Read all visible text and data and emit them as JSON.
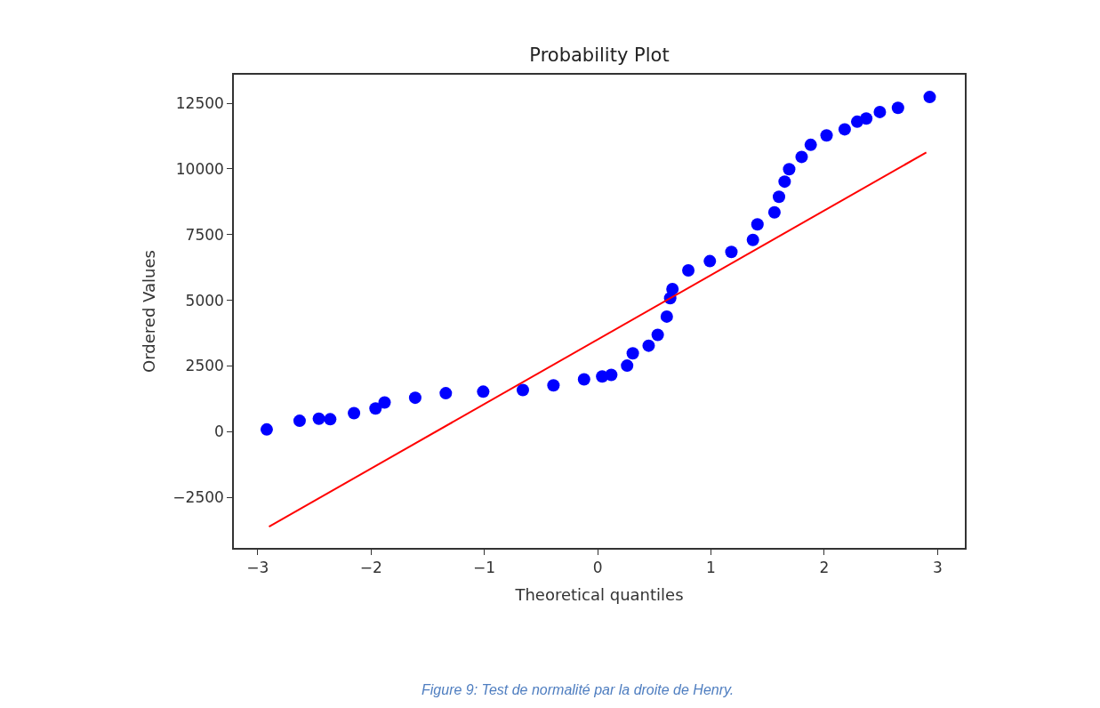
{
  "chart_data": {
    "type": "scatter",
    "title": "Probability Plot",
    "xlabel": "Theoretical quantiles",
    "ylabel": "Ordered Values",
    "annotations": [
      "Figure 9: Test de normalité par la droite de Henry."
    ],
    "xlim": [
      -3.21,
      3.24
    ],
    "xticks": [
      {
        "value": -3,
        "label": "−3"
      },
      {
        "value": -2,
        "label": "−2"
      },
      {
        "value": -1,
        "label": "−1"
      },
      0,
      1,
      2,
      3
    ],
    "ylim": [
      -4430,
      13590
    ],
    "yticks": [
      {
        "value": -2500,
        "label": "−2500"
      },
      0,
      2500,
      5000,
      7500,
      10000,
      12500
    ],
    "series": [
      {
        "marker": "circle",
        "color": "#0000ff",
        "x": [
          -2.92,
          -2.63,
          -2.46,
          -2.36,
          -2.15,
          -1.96,
          -1.88,
          -1.61,
          -1.34,
          -1.01,
          -0.66,
          -0.39,
          -0.12,
          0.04,
          0.12,
          0.26,
          0.31,
          0.45,
          0.53,
          0.61,
          0.64,
          0.66,
          0.8,
          0.99,
          1.18,
          1.37,
          1.41,
          1.56,
          1.6,
          1.65,
          1.69,
          1.8,
          1.88,
          2.02,
          2.18,
          2.29,
          2.37,
          2.49,
          2.65,
          2.93
        ],
        "values": [
          80,
          410,
          490,
          470,
          700,
          880,
          1110,
          1290,
          1460,
          1520,
          1580,
          1760,
          1990,
          2100,
          2160,
          2510,
          2980,
          3270,
          3680,
          4380,
          5080,
          5430,
          6140,
          6490,
          6840,
          7300,
          7890,
          8350,
          8940,
          9520,
          9990,
          10460,
          10920,
          11280,
          11510,
          11800,
          11920,
          12170,
          12330,
          12740
        ]
      },
      {
        "type": "line",
        "marker": "none",
        "color": "#ff0000",
        "x": [
          -2.9,
          2.9
        ],
        "values": [
          -3620,
          10630
        ]
      }
    ]
  }
}
